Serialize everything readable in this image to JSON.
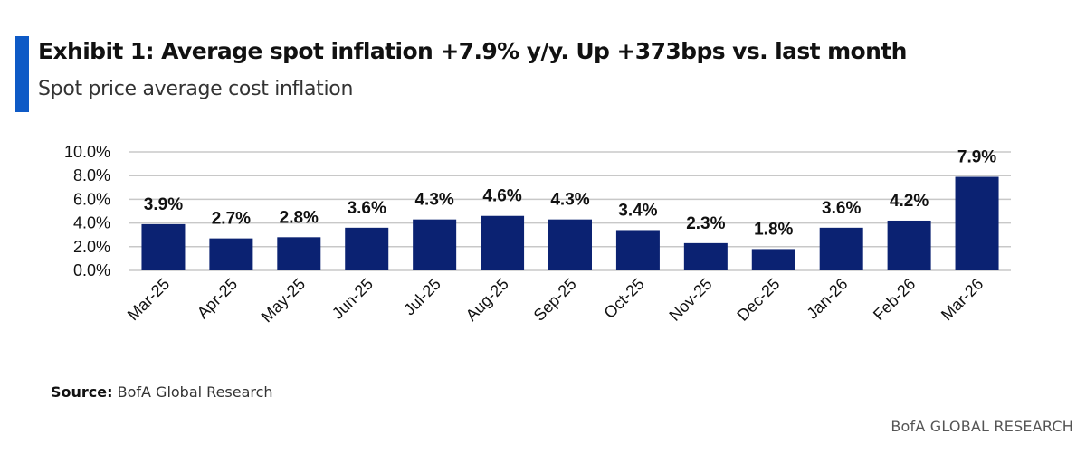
{
  "header": {
    "title": "Exhibit 1: Average spot inflation +7.9% y/y. Up +373bps vs. last month",
    "subtitle": "Spot price average cost inflation"
  },
  "footer": {
    "source_label": "Source:",
    "source_text": " BofA Global Research",
    "brand": "BofA GLOBAL RESEARCH"
  },
  "colors": {
    "accent": "#0e5ac6",
    "bar": "#0b2272",
    "grid": "#c8c8c8"
  },
  "chart_data": {
    "type": "bar",
    "categories": [
      "Mar-25",
      "Apr-25",
      "May-25",
      "Jun-25",
      "Jul-25",
      "Aug-25",
      "Sep-25",
      "Oct-25",
      "Nov-25",
      "Dec-25",
      "Jan-26",
      "Feb-26",
      "Mar-26"
    ],
    "values": [
      3.9,
      2.7,
      2.8,
      3.6,
      4.3,
      4.6,
      4.3,
      3.4,
      2.3,
      1.8,
      3.6,
      4.2,
      7.9
    ],
    "value_labels": [
      "3.9%",
      "2.7%",
      "2.8%",
      "3.6%",
      "4.3%",
      "4.6%",
      "4.3%",
      "3.4%",
      "2.3%",
      "1.8%",
      "3.6%",
      "4.2%",
      "7.9%"
    ],
    "y_ticks": [
      "0.0%",
      "2.0%",
      "4.0%",
      "6.0%",
      "8.0%",
      "10.0%"
    ],
    "y_tick_values": [
      0,
      2,
      4,
      6,
      8,
      10
    ],
    "ylim": [
      0,
      10
    ],
    "grid": true,
    "legend": "none"
  }
}
